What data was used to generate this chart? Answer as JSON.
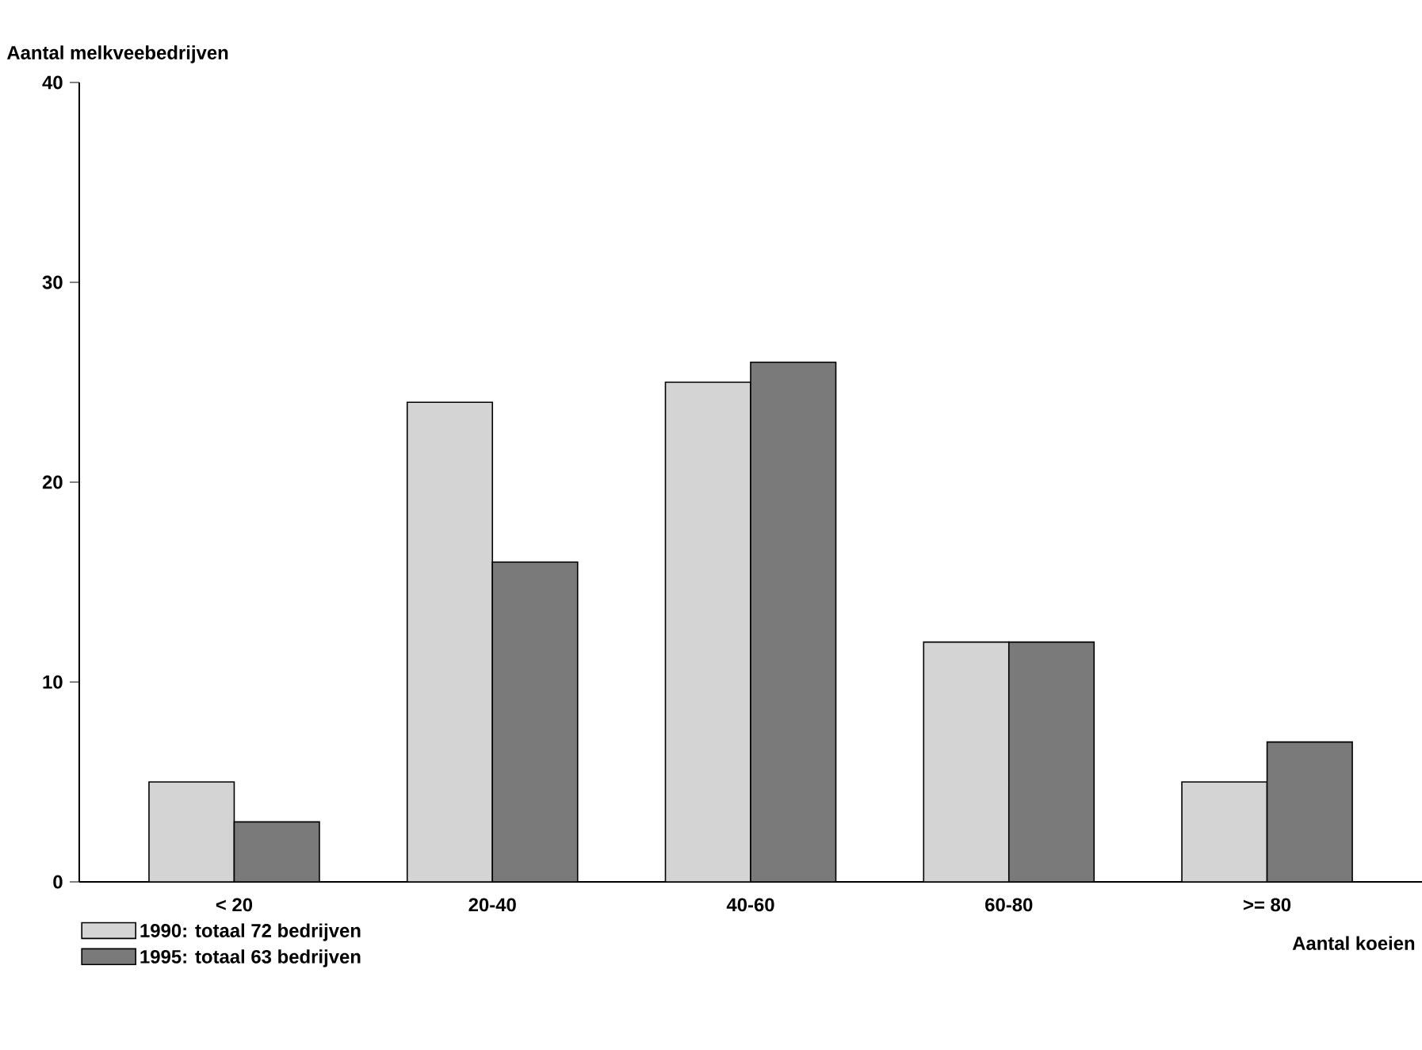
{
  "chart_data": {
    "type": "bar",
    "ylabel": "Aantal melkveebedrijven",
    "xlabel": "Aantal koeien",
    "categories": [
      "< 20",
      "20-40",
      "40-60",
      "60-80",
      ">= 80"
    ],
    "series": [
      {
        "name": "1990: totaal 72 bedrijven",
        "color": "#d4d4d4",
        "values": [
          5,
          24,
          25,
          12,
          5
        ]
      },
      {
        "name": "1995: totaal 63 bedrijven",
        "color": "#7a7a7a",
        "values": [
          3,
          16,
          26,
          12,
          7
        ]
      }
    ],
    "ylim": [
      0,
      40
    ],
    "yticks": [
      0,
      10,
      20,
      30,
      40
    ],
    "grid": false,
    "legend": "bottom left"
  }
}
